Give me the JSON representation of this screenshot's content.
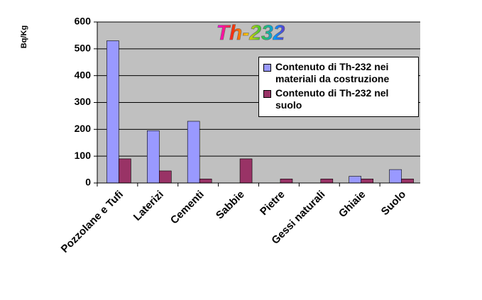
{
  "chart_data": {
    "type": "bar",
    "title": "Th-232",
    "y_label": "Bq/Kg",
    "categories": [
      "Pozzolane e Tufi",
      "Laterizi",
      "Cementi",
      "Sabbie",
      "Pietre",
      "Gessi naturali",
      "Ghiaie",
      "Suolo"
    ],
    "series": [
      {
        "name": "Contenuto di Th-232 nei materiali da costruzione",
        "color": "#9999ff",
        "values": [
          530,
          195,
          230,
          0,
          0,
          0,
          25,
          50
        ]
      },
      {
        "name": "Contenuto di Th-232 nel suolo",
        "color": "#993366",
        "values": [
          90,
          45,
          15,
          90,
          15,
          15,
          15,
          15
        ]
      }
    ],
    "ylim": [
      0,
      600
    ],
    "yticks": [
      0,
      100,
      200,
      300,
      400,
      500,
      600
    ],
    "grid": true,
    "legend": "upper right",
    "background": "#c0c0c0"
  }
}
